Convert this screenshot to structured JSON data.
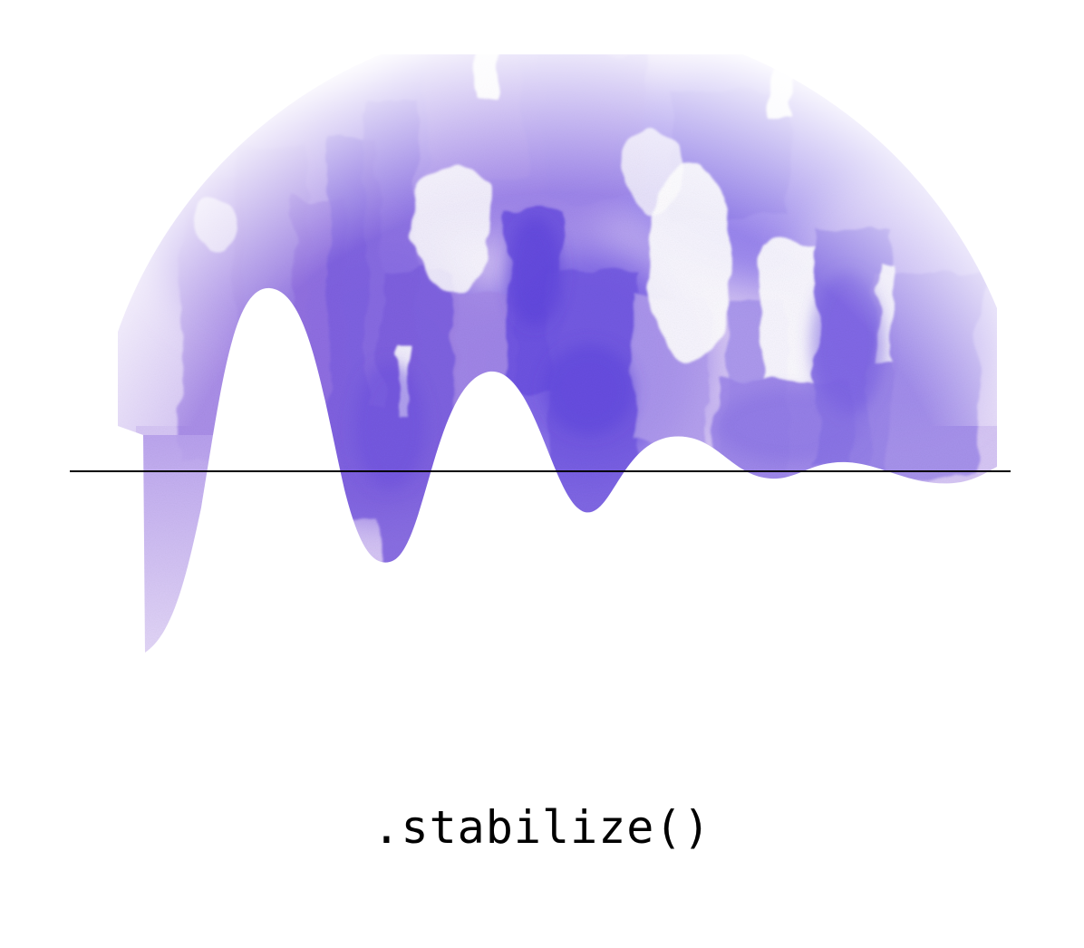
{
  "caption": ".stabilize()",
  "colors": {
    "background": "#ffffff",
    "wash_deep": "#6a4fe0",
    "wash_mid": "#8f72e6",
    "wash_light": "#c9b5f2",
    "wash_pale": "#e8ddfa",
    "baseline": "#000000"
  },
  "artwork": {
    "kind": "watercolor-damped-oscillation",
    "icons": [
      "watercolor-wash",
      "damped-wave-shape",
      "horizontal-baseline"
    ]
  }
}
